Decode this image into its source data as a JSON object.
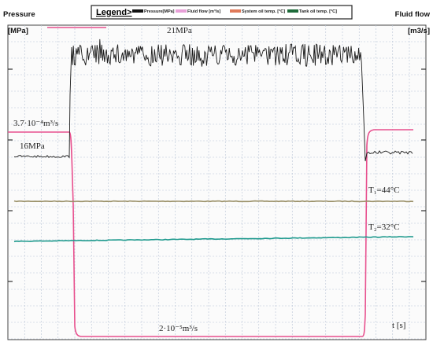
{
  "chart_data": {
    "type": "line",
    "legend": {
      "title": "Legend>",
      "placement": "top",
      "items": [
        {
          "label": "Pressure[MPa]",
          "color": "#111111"
        },
        {
          "label": "Fluid flow [m³/s]",
          "color": "#e8a0d8"
        },
        {
          "label": "System oil temp. [°C]",
          "color": "#e07a5a"
        },
        {
          "label": "Tank oil temp. [°C]",
          "color": "#1e6b3a"
        }
      ]
    },
    "y_left": {
      "title": "Pressure",
      "unit": "[MPa]"
    },
    "y_right": {
      "title": "Fluid flow",
      "unit": "[m3/s]"
    },
    "x_axis": {
      "label": "t [s]"
    },
    "grid": true,
    "annotations": [
      {
        "id": "p_high",
        "text": "21MPa"
      },
      {
        "id": "flow_high",
        "text": "3.7·10⁻⁴m³/s"
      },
      {
        "id": "p_low",
        "text": "16MPa"
      },
      {
        "id": "t1",
        "text": "T₁=44°C"
      },
      {
        "id": "t2",
        "text": "T₂=32°C"
      },
      {
        "id": "flow_low",
        "text": "2·10⁻⁵m³/s"
      }
    ],
    "series": [
      {
        "name": "Pressure[MPa]",
        "color": "#1a1a1a",
        "segments": [
          {
            "phase": "idle",
            "level": "16MPa",
            "noise": "small"
          },
          {
            "phase": "loaded",
            "level": "21MPa",
            "noise": "large"
          },
          {
            "phase": "idle",
            "level": "16MPa",
            "noise": "small"
          }
        ]
      },
      {
        "name": "Fluid flow [m³/s]",
        "color": "#e8508e",
        "segments": [
          {
            "phase": "idle",
            "level": "3.7·10⁻⁴m³/s"
          },
          {
            "phase": "loaded",
            "level": "2·10⁻⁵m³/s"
          },
          {
            "phase": "idle",
            "level": "3.7·10⁻⁴m³/s"
          }
        ]
      },
      {
        "name": "System oil temp. [°C]",
        "color": "#9a9068",
        "level": "T₁=44°C"
      },
      {
        "name": "Tank oil temp. [°C]",
        "color": "#1f9a8e",
        "level": "T₂=32°C",
        "trend": "slowly rising"
      }
    ]
  }
}
